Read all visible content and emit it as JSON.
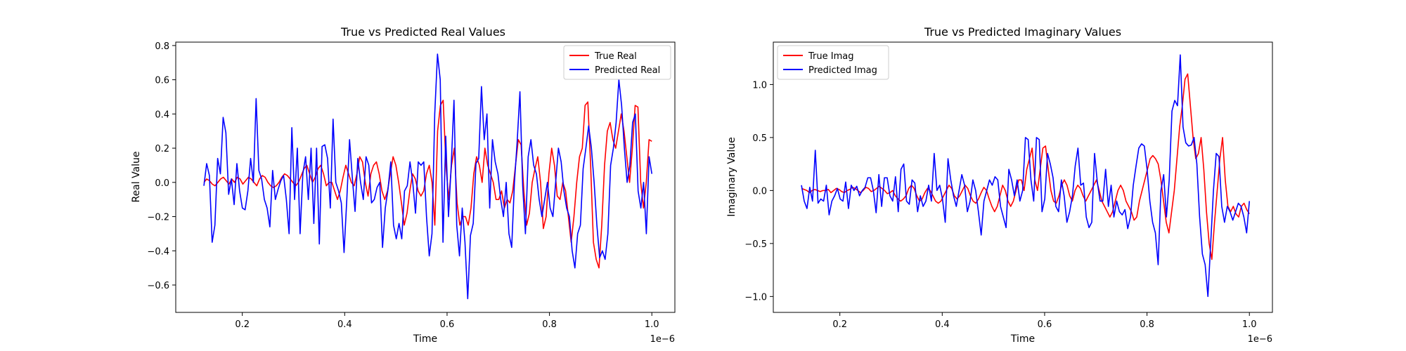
{
  "chart_data": [
    {
      "type": "line",
      "title": "True vs Predicted Real Values",
      "xlabel": "Time",
      "ylabel": "Real Value",
      "x_offset_label": "1e−6",
      "xlim": [
        0.07,
        1.045
      ],
      "ylim": [
        -0.76,
        0.82
      ],
      "xticks": [
        0.2,
        0.4,
        0.6,
        0.8,
        1.0
      ],
      "xtick_labels": [
        "0.2",
        "0.4",
        "0.6",
        "0.8",
        "1.0"
      ],
      "yticks": [
        -0.6,
        -0.4,
        -0.2,
        0.0,
        0.2,
        0.4,
        0.6,
        0.8
      ],
      "ytick_labels": [
        "−0.6",
        "−0.4",
        "−0.2",
        "0.0",
        "0.2",
        "0.4",
        "0.6",
        "0.8"
      ],
      "legend_position": "top-right",
      "grid": false,
      "x_start": 0.125,
      "x_end": 1.0,
      "series": [
        {
          "name": "True Real",
          "color": "#ff0000",
          "values": [
            0.0,
            0.02,
            0.01,
            -0.01,
            -0.02,
            0.0,
            0.02,
            0.03,
            0.01,
            -0.01,
            0.02,
            0.0,
            0.03,
            0.02,
            -0.01,
            0.01,
            0.03,
            0.02,
            0.0,
            -0.02,
            0.02,
            0.04,
            0.03,
            0.0,
            -0.02,
            -0.03,
            -0.02,
            0.0,
            0.03,
            0.05,
            0.04,
            0.02,
            0.0,
            -0.02,
            0.0,
            0.04,
            0.08,
            0.1,
            0.05,
            0.0,
            0.03,
            0.08,
            0.1,
            0.05,
            -0.02,
            0.0,
            0.0,
            -0.05,
            -0.1,
            -0.05,
            0.03,
            0.1,
            0.05,
            0.0,
            -0.02,
            0.05,
            0.15,
            0.12,
            0.0,
            -0.08,
            0.05,
            0.1,
            0.12,
            0.05,
            -0.05,
            -0.1,
            -0.05,
            0.05,
            0.15,
            0.1,
            0.0,
            -0.12,
            -0.25,
            -0.18,
            -0.05,
            0.05,
            0.02,
            -0.05,
            -0.08,
            -0.05,
            0.05,
            0.1,
            0.0,
            -0.25,
            0.3,
            0.45,
            0.48,
            0.1,
            -0.1,
            0.1,
            0.2,
            -0.12,
            -0.25,
            -0.2,
            -0.2,
            -0.25,
            -0.15,
            0.05,
            0.15,
            0.1,
            0.0,
            0.2,
            0.1,
            0.05,
            0.0,
            -0.1,
            -0.1,
            -0.05,
            -0.15,
            -0.1,
            -0.12,
            -0.05,
            0.1,
            0.25,
            0.22,
            -0.05,
            -0.25,
            -0.18,
            0.0,
            0.08,
            0.15,
            0.0,
            -0.27,
            -0.2,
            0.05,
            0.2,
            0.1,
            -0.08,
            -0.1,
            0.0,
            -0.05,
            -0.2,
            -0.35,
            -0.2,
            0.0,
            0.15,
            0.2,
            0.45,
            0.47,
            0.1,
            -0.35,
            -0.45,
            -0.5,
            -0.25,
            0.1,
            0.3,
            0.35,
            0.25,
            0.2,
            0.3,
            0.4,
            0.3,
            0.15,
            0.0,
            0.2,
            0.45,
            0.44,
            0.0,
            -0.15,
            0.0,
            0.25,
            0.24
          ]
        },
        {
          "name": "Predicted Real",
          "color": "#0000ff",
          "values": [
            -0.02,
            0.11,
            0.04,
            -0.35,
            -0.25,
            0.14,
            0.05,
            0.38,
            0.29,
            -0.07,
            0.02,
            -0.13,
            0.11,
            -0.05,
            -0.15,
            -0.16,
            -0.05,
            0.14,
            0.0,
            0.49,
            0.07,
            0.02,
            -0.1,
            -0.15,
            -0.26,
            0.07,
            -0.1,
            -0.04,
            0.01,
            0.04,
            -0.1,
            -0.3,
            0.32,
            -0.1,
            0.2,
            -0.3,
            0.05,
            0.15,
            -0.1,
            0.2,
            -0.24,
            0.2,
            -0.36,
            0.21,
            0.22,
            0.14,
            -0.15,
            0.37,
            0.0,
            -0.05,
            -0.12,
            -0.41,
            -0.1,
            0.25,
            0.03,
            -0.17,
            0.14,
            0.0,
            -0.1,
            0.15,
            0.1,
            -0.12,
            -0.1,
            -0.03,
            0.0,
            -0.38,
            -0.15,
            -0.04,
            0.12,
            -0.25,
            -0.33,
            -0.24,
            -0.33,
            -0.05,
            -0.02,
            0.12,
            0.0,
            -0.18,
            0.12,
            0.1,
            0.12,
            -0.2,
            -0.43,
            -0.3,
            0.4,
            0.75,
            0.6,
            -0.35,
            0.27,
            -0.2,
            0.1,
            0.48,
            -0.25,
            -0.43,
            -0.15,
            -0.35,
            -0.68,
            -0.31,
            -0.24,
            0.11,
            0.14,
            0.56,
            0.25,
            0.4,
            -0.15,
            0.25,
            0.12,
            0.05,
            -0.1,
            -0.2,
            0.0,
            -0.3,
            -0.38,
            0.0,
            0.24,
            0.53,
            -0.02,
            -0.3,
            0.15,
            0.25,
            0.1,
            0.05,
            -0.1,
            -0.2,
            -0.1,
            0.0,
            -0.15,
            -0.2,
            0.0,
            0.2,
            0.12,
            -0.05,
            -0.15,
            -0.2,
            -0.4,
            -0.5,
            -0.3,
            -0.25,
            0.08,
            0.2,
            0.33,
            0.2,
            0.0,
            -0.25,
            -0.44,
            -0.4,
            -0.45,
            -0.3,
            0.1,
            0.2,
            0.35,
            0.6,
            0.45,
            0.2,
            0.0,
            0.1,
            0.35,
            0.4,
            -0.05,
            -0.15,
            0.0,
            -0.3,
            0.15,
            0.05
          ]
        }
      ]
    },
    {
      "type": "line",
      "title": "True vs Predicted Imaginary Values",
      "xlabel": "Time",
      "ylabel": "Imaginary Value",
      "x_offset_label": "1e−6",
      "xlim": [
        0.07,
        1.045
      ],
      "ylim": [
        -1.15,
        1.4
      ],
      "xticks": [
        0.2,
        0.4,
        0.6,
        0.8,
        1.0
      ],
      "xtick_labels": [
        "0.2",
        "0.4",
        "0.6",
        "0.8",
        "1.0"
      ],
      "yticks": [
        -1.0,
        -0.5,
        0.0,
        0.5,
        1.0
      ],
      "ytick_labels": [
        "−1.0",
        "−0.5",
        "0.0",
        "0.5",
        "1.0"
      ],
      "legend_position": "top-left",
      "grid": false,
      "x_start": 0.125,
      "x_end": 1.0,
      "series": [
        {
          "name": "True Imag",
          "color": "#ff0000",
          "values": [
            0.02,
            0.01,
            0.0,
            -0.02,
            0.0,
            0.01,
            0.0,
            -0.01,
            0.0,
            0.0,
            0.01,
            -0.02,
            0.0,
            0.02,
            0.01,
            -0.01,
            -0.02,
            0.0,
            0.01,
            0.03,
            0.02,
            0.0,
            -0.02,
            0.0,
            0.03,
            0.02,
            -0.01,
            0.0,
            0.02,
            0.04,
            0.02,
            0.0,
            -0.03,
            -0.02,
            0.0,
            -0.05,
            -0.08,
            -0.1,
            -0.08,
            -0.05,
            0.02,
            0.05,
            0.02,
            -0.05,
            -0.1,
            -0.08,
            -0.02,
            0.02,
            0.0,
            -0.05,
            -0.1,
            -0.12,
            -0.1,
            -0.05,
            0.0,
            0.05,
            0.02,
            -0.05,
            -0.08,
            -0.05,
            0.0,
            0.05,
            0.02,
            -0.05,
            -0.1,
            -0.12,
            -0.08,
            -0.02,
            0.03,
            0.0,
            -0.08,
            -0.15,
            -0.2,
            -0.15,
            -0.05,
            0.05,
            0.0,
            -0.1,
            -0.15,
            -0.1,
            0.0,
            0.1,
            0.1,
            0.0,
            0.2,
            0.3,
            0.4,
            0.1,
            0.0,
            0.2,
            0.4,
            0.42,
            0.2,
            0.0,
            -0.1,
            -0.12,
            -0.05,
            0.05,
            0.1,
            0.05,
            -0.05,
            -0.1,
            0.0,
            0.05,
            0.02,
            -0.05,
            -0.1,
            -0.05,
            0.0,
            0.05,
            0.1,
            0.0,
            -0.1,
            -0.15,
            -0.2,
            -0.25,
            -0.2,
            -0.1,
            0.0,
            0.05,
            0.0,
            -0.1,
            -0.15,
            -0.2,
            -0.28,
            -0.25,
            -0.1,
            0.0,
            0.1,
            0.2,
            0.3,
            0.33,
            0.3,
            0.25,
            0.1,
            -0.1,
            -0.3,
            -0.4,
            -0.2,
            0.0,
            0.3,
            0.6,
            0.8,
            1.05,
            1.1,
            0.8,
            0.5,
            0.3,
            0.35,
            0.5,
            0.2,
            -0.2,
            -0.5,
            -0.65,
            -0.3,
            0.0,
            0.3,
            0.5,
            0.1,
            -0.15,
            -0.2,
            -0.15,
            -0.22,
            -0.25,
            -0.15,
            -0.12,
            -0.18,
            -0.22
          ]
        },
        {
          "name": "Predicted Imag",
          "color": "#0000ff",
          "values": [
            0.05,
            -0.1,
            -0.17,
            0.03,
            -0.1,
            0.38,
            -0.12,
            -0.08,
            -0.1,
            0.05,
            -0.23,
            -0.1,
            -0.05,
            0.02,
            -0.08,
            -0.1,
            0.08,
            -0.17,
            0.05,
            0.0,
            0.04,
            -0.05,
            0.0,
            0.03,
            0.12,
            0.12,
            0.0,
            -0.21,
            0.15,
            -0.15,
            0.12,
            0.12,
            -0.05,
            -0.1,
            0.13,
            -0.2,
            0.2,
            0.25,
            -0.1,
            -0.13,
            0.1,
            0.07,
            -0.2,
            -0.05,
            -0.15,
            -0.1,
            0.05,
            -0.1,
            0.35,
            0.0,
            0.05,
            -0.08,
            -0.3,
            0.3,
            0.1,
            -0.05,
            -0.15,
            0.0,
            0.15,
            0.05,
            -0.2,
            -0.1,
            0.1,
            0.0,
            -0.2,
            -0.42,
            -0.1,
            0.0,
            0.1,
            0.05,
            0.13,
            0.1,
            -0.15,
            -0.25,
            -0.35,
            0.2,
            0.1,
            -0.05,
            0.1,
            -0.1,
            0.0,
            0.5,
            0.48,
            0.1,
            -0.1,
            0.5,
            0.48,
            -0.2,
            -0.08,
            0.35,
            0.25,
            0.12,
            -0.15,
            -0.2,
            0.1,
            -0.05,
            -0.3,
            -0.2,
            -0.05,
            0.23,
            0.4,
            0.05,
            0.07,
            -0.25,
            -0.35,
            -0.3,
            0.35,
            0.08,
            -0.1,
            -0.1,
            0.2,
            -0.15,
            0.05,
            -0.25,
            -0.1,
            -0.2,
            -0.23,
            -0.18,
            -0.36,
            -0.25,
            0.05,
            0.23,
            0.4,
            0.44,
            0.42,
            0.2,
            -0.1,
            -0.3,
            -0.4,
            -0.7,
            0.0,
            0.15,
            -0.25,
            0.1,
            0.75,
            0.85,
            0.8,
            1.28,
            0.6,
            0.45,
            0.42,
            0.43,
            0.5,
            0.25,
            -0.25,
            -0.6,
            -0.7,
            -1.0,
            -0.5,
            0.0,
            0.35,
            0.32,
            -0.15,
            -0.3,
            -0.15,
            -0.2,
            -0.28,
            -0.2,
            -0.12,
            -0.15,
            -0.25,
            -0.4,
            -0.1
          ]
        }
      ]
    }
  ]
}
